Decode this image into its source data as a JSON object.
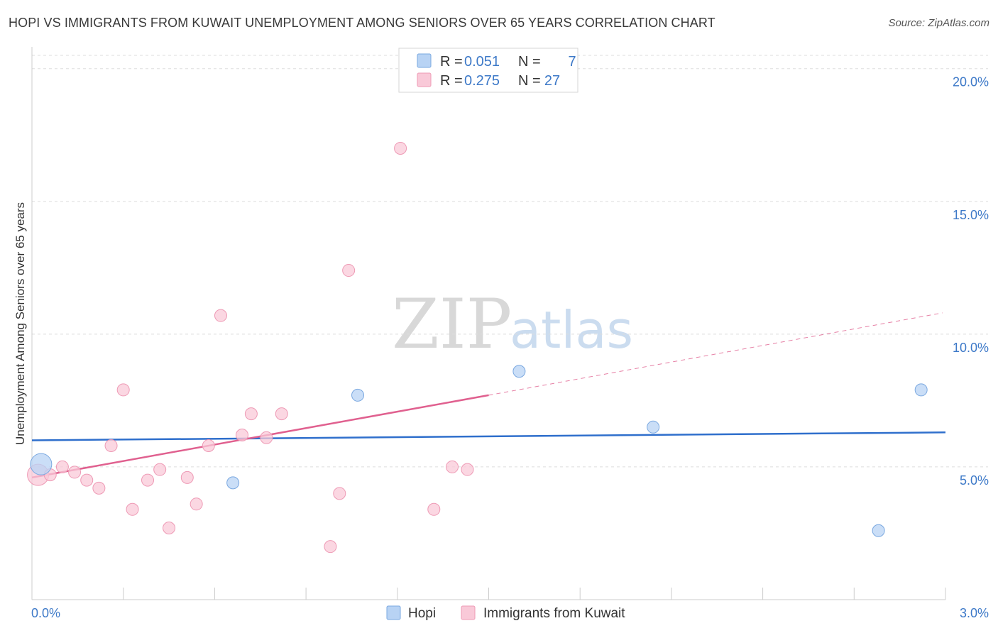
{
  "header": {
    "title": "HOPI VS IMMIGRANTS FROM KUWAIT UNEMPLOYMENT AMONG SENIORS OVER 65 YEARS CORRELATION CHART",
    "source": "Source: ZipAtlas.com"
  },
  "watermark": {
    "zip": "ZIP",
    "atlas": "atlas"
  },
  "legend": {
    "series": [
      {
        "r_label": "R = ",
        "r_value": "0.051",
        "n_label": "N = ",
        "n_value": "7"
      },
      {
        "r_label": "R = ",
        "r_value": "0.275",
        "n_label": "N = ",
        "n_value": "27"
      }
    ]
  },
  "colors": {
    "hopi_fill": "#b8d3f4",
    "hopi_stroke": "#7aa8e0",
    "hopi_line": "#2f6fcc",
    "kuwait_fill": "#f9c9d8",
    "kuwait_stroke": "#ee9ab5",
    "kuwait_line": "#e0608f",
    "grid": "#dddddd",
    "tick_text": "#3d79c8"
  },
  "chart_data": {
    "type": "scatter",
    "title": "HOPI VS IMMIGRANTS FROM KUWAIT UNEMPLOYMENT AMONG SENIORS OVER 65 YEARS CORRELATION CHART",
    "xlabel": "",
    "ylabel": "Unemployment Among Seniors over 65 years",
    "xlim": [
      0.0,
      3.0
    ],
    "ylim": [
      0.0,
      20.5
    ],
    "x_tick_labels": [
      "0.0%",
      "3.0%"
    ],
    "y_ticks": [
      5.0,
      10.0,
      15.0,
      20.0
    ],
    "y_tick_labels": [
      "5.0%",
      "10.0%",
      "15.0%",
      "20.0%"
    ],
    "grid": true,
    "legend_position": "top-center",
    "series": [
      {
        "name": "Hopi",
        "r": 0.051,
        "n": 7,
        "points": [
          {
            "x": 0.03,
            "y": 5.1,
            "big": true
          },
          {
            "x": 0.66,
            "y": 4.4
          },
          {
            "x": 1.07,
            "y": 7.7
          },
          {
            "x": 1.6,
            "y": 8.6
          },
          {
            "x": 2.04,
            "y": 6.5
          },
          {
            "x": 2.78,
            "y": 2.6
          },
          {
            "x": 2.92,
            "y": 7.9
          }
        ],
        "trend": {
          "x0": 0.0,
          "y0": 6.0,
          "x1": 3.0,
          "y1": 6.3
        }
      },
      {
        "name": "Immigrants from Kuwait",
        "r": 0.275,
        "n": 27,
        "points": [
          {
            "x": 0.02,
            "y": 4.7,
            "big": true
          },
          {
            "x": 0.06,
            "y": 4.7
          },
          {
            "x": 0.1,
            "y": 5.0
          },
          {
            "x": 0.14,
            "y": 4.8
          },
          {
            "x": 0.18,
            "y": 4.5
          },
          {
            "x": 0.22,
            "y": 4.2
          },
          {
            "x": 0.26,
            "y": 5.8
          },
          {
            "x": 0.3,
            "y": 7.9
          },
          {
            "x": 0.33,
            "y": 3.4
          },
          {
            "x": 0.38,
            "y": 4.5
          },
          {
            "x": 0.42,
            "y": 4.9
          },
          {
            "x": 0.45,
            "y": 2.7
          },
          {
            "x": 0.51,
            "y": 4.6
          },
          {
            "x": 0.54,
            "y": 3.6
          },
          {
            "x": 0.58,
            "y": 5.8
          },
          {
            "x": 0.62,
            "y": 10.7
          },
          {
            "x": 0.69,
            "y": 6.2
          },
          {
            "x": 0.72,
            "y": 7.0
          },
          {
            "x": 0.77,
            "y": 6.1
          },
          {
            "x": 0.82,
            "y": 7.0
          },
          {
            "x": 0.98,
            "y": 2.0
          },
          {
            "x": 1.01,
            "y": 4.0
          },
          {
            "x": 1.04,
            "y": 12.4
          },
          {
            "x": 1.21,
            "y": 17.0
          },
          {
            "x": 1.32,
            "y": 3.4
          },
          {
            "x": 1.38,
            "y": 5.0
          },
          {
            "x": 1.43,
            "y": 4.9
          }
        ],
        "trend": {
          "x0": 0.0,
          "y0": 4.6,
          "x1": 1.5,
          "y1": 7.7
        },
        "trend_dashed": {
          "x0": 1.5,
          "y0": 7.7,
          "x1": 2.99,
          "y1": 10.8
        }
      }
    ]
  }
}
